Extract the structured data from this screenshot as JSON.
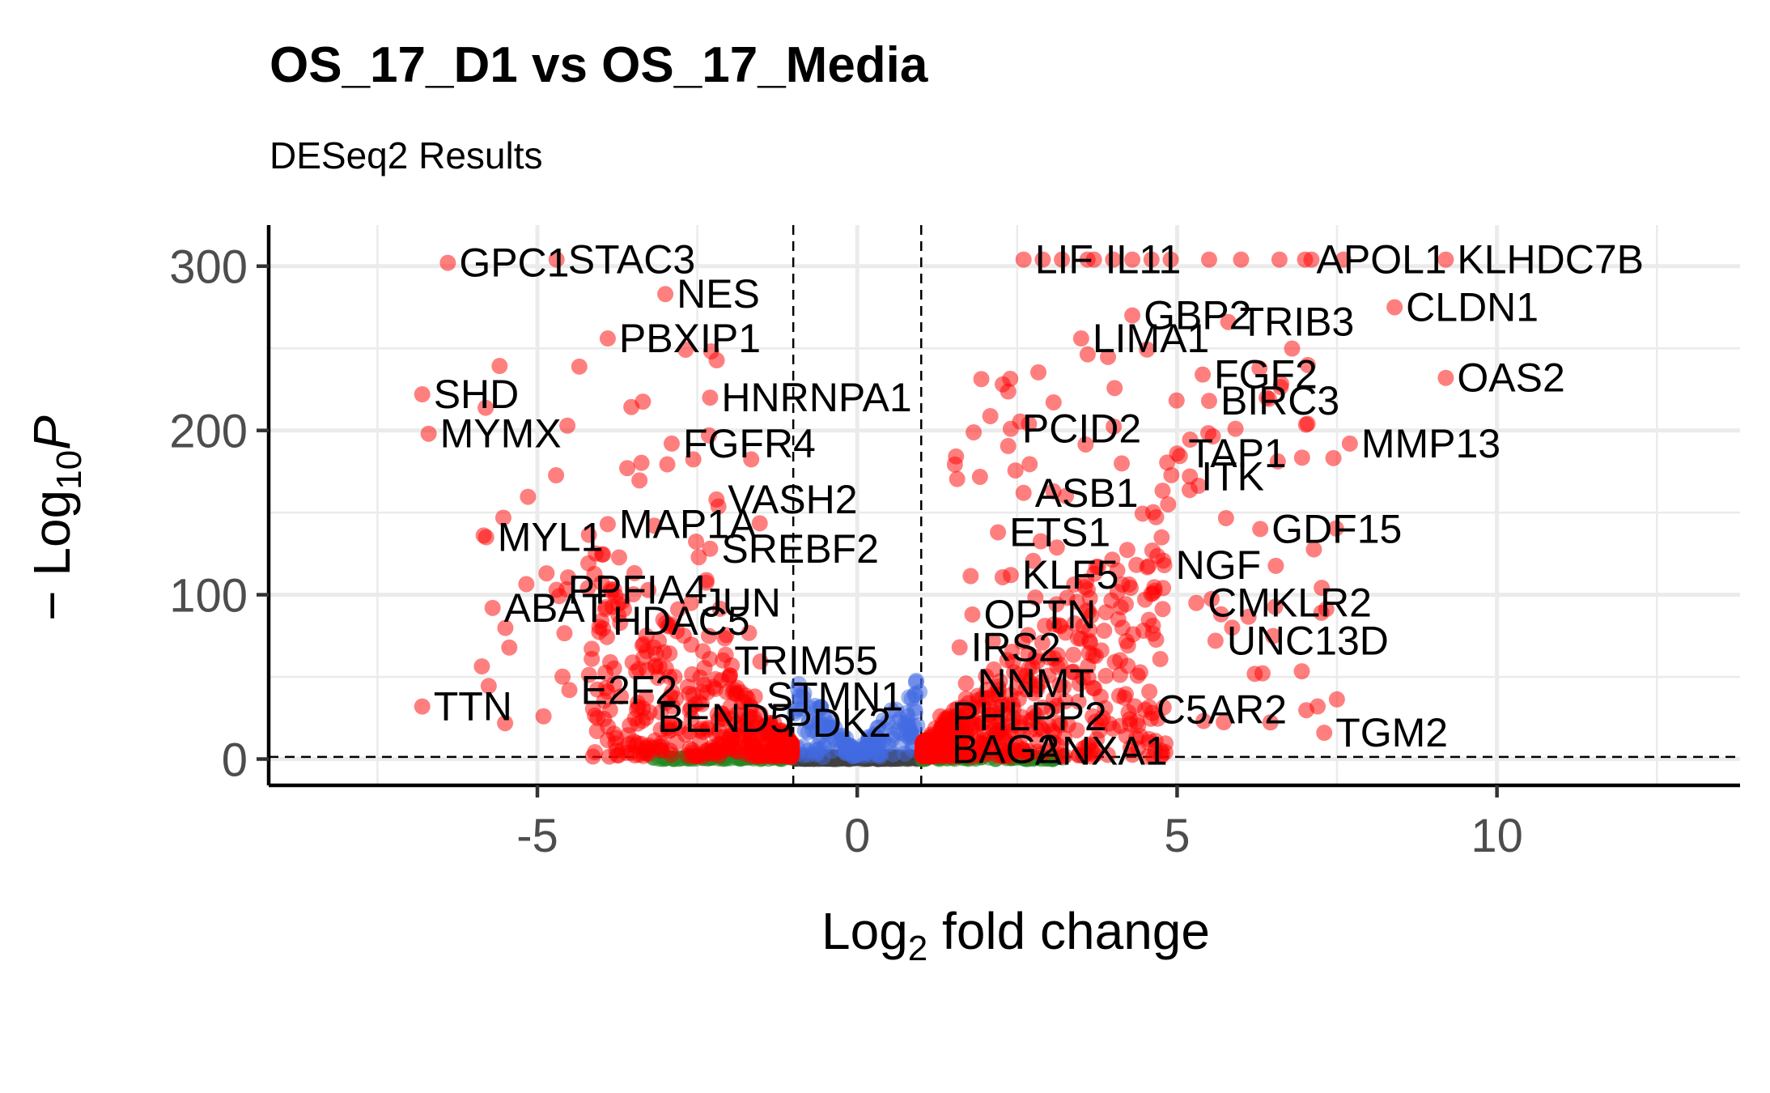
{
  "title": "OS_17_D1 vs OS_17_Media",
  "subtitle": "DESeq2 Results",
  "chart_data": {
    "type": "scatter",
    "title": "OS_17_D1 vs OS_17_Media",
    "subtitle": "DESeq2 Results",
    "xlabel": {
      "base": "Log",
      "sub": "2",
      "rest": " fold change"
    },
    "ylabel": {
      "prefix": "− Log",
      "sub": "10",
      "var": "P"
    },
    "xlim": [
      -9.2,
      13.8
    ],
    "ylim": [
      -16,
      325
    ],
    "x_ticks": [
      -5,
      0,
      5,
      10
    ],
    "x_tick_labels": [
      "-5",
      "0",
      "5",
      "10"
    ],
    "y_ticks": [
      0,
      100,
      200,
      300
    ],
    "y_tick_labels": [
      "0",
      "100",
      "200",
      "300"
    ],
    "grid": true,
    "fc_cutoff": 1,
    "p_cutoff_y": 1.3,
    "colors": {
      "sig": "#ff0000",
      "fc_only": "#228b22",
      "p_only": "#4169e1",
      "ns": "#404040",
      "grid": "#ebebeb",
      "axis": "#000000"
    },
    "labeled_genes": [
      {
        "label": "GPC1",
        "x": -6.4,
        "y": 302
      },
      {
        "label": "STAC3",
        "x": -4.7,
        "y": 304
      },
      {
        "label": "NES",
        "x": -3.0,
        "y": 283
      },
      {
        "label": "PBXIP1",
        "x": -3.9,
        "y": 256
      },
      {
        "label": "SHD",
        "x": -6.8,
        "y": 222
      },
      {
        "label": "HNRNPA1",
        "x": -2.3,
        "y": 220
      },
      {
        "label": "MYMX",
        "x": -6.7,
        "y": 198
      },
      {
        "label": "FGFR4",
        "x": -2.9,
        "y": 192
      },
      {
        "label": "VASH2",
        "x": -2.2,
        "y": 158
      },
      {
        "label": "MAP1A",
        "x": -3.9,
        "y": 143
      },
      {
        "label": "MYL1",
        "x": -5.8,
        "y": 135
      },
      {
        "label": "SREBF2",
        "x": -2.3,
        "y": 128
      },
      {
        "label": "PPFIA4",
        "x": -4.7,
        "y": 103
      },
      {
        "label": "JUN",
        "x": -2.6,
        "y": 95
      },
      {
        "label": "ABAT",
        "x": -5.7,
        "y": 92
      },
      {
        "label": "HDAC5",
        "x": -4.0,
        "y": 84
      },
      {
        "label": "TRIM55",
        "x": -2.1,
        "y": 60
      },
      {
        "label": "E2F2",
        "x": -4.5,
        "y": 42
      },
      {
        "label": "STMN1",
        "x": -1.6,
        "y": 38
      },
      {
        "label": "TTN",
        "x": -6.8,
        "y": 32
      },
      {
        "label": "BEND5",
        "x": -3.3,
        "y": 25
      },
      {
        "label": "PDK2",
        "x": -1.3,
        "y": 22
      },
      {
        "label": "LIF",
        "x": 2.6,
        "y": 304
      },
      {
        "label": "IL11",
        "x": 3.7,
        "y": 304
      },
      {
        "label": "APOL1",
        "x": 7.0,
        "y": 304
      },
      {
        "label": "KLHDC7B",
        "x": 9.2,
        "y": 304
      },
      {
        "label": "GBP2",
        "x": 4.3,
        "y": 270
      },
      {
        "label": "TRIB3",
        "x": 5.8,
        "y": 266
      },
      {
        "label": "CLDN1",
        "x": 8.4,
        "y": 275
      },
      {
        "label": "LIMA1",
        "x": 3.5,
        "y": 256
      },
      {
        "label": "FGF2",
        "x": 5.4,
        "y": 234
      },
      {
        "label": "OAS2",
        "x": 9.2,
        "y": 232
      },
      {
        "label": "BIRC3",
        "x": 5.5,
        "y": 218
      },
      {
        "label": "PCID2",
        "x": 2.4,
        "y": 201
      },
      {
        "label": "TAP1",
        "x": 5.0,
        "y": 186
      },
      {
        "label": "MMP13",
        "x": 7.7,
        "y": 192
      },
      {
        "label": "ITK",
        "x": 5.2,
        "y": 172
      },
      {
        "label": "ASB1",
        "x": 2.6,
        "y": 162
      },
      {
        "label": "ETS1",
        "x": 2.2,
        "y": 138
      },
      {
        "label": "GDF15",
        "x": 6.3,
        "y": 140
      },
      {
        "label": "NGF",
        "x": 4.8,
        "y": 118
      },
      {
        "label": "KLF5",
        "x": 2.4,
        "y": 112
      },
      {
        "label": "CMKLR2",
        "x": 5.3,
        "y": 95
      },
      {
        "label": "OPTN",
        "x": 1.8,
        "y": 88
      },
      {
        "label": "UNC13D",
        "x": 5.6,
        "y": 72
      },
      {
        "label": "IRS2",
        "x": 1.6,
        "y": 68
      },
      {
        "label": "NNMT",
        "x": 1.7,
        "y": 46
      },
      {
        "label": "C5AR2",
        "x": 4.5,
        "y": 30
      },
      {
        "label": "PHLPP2",
        "x": 1.3,
        "y": 26
      },
      {
        "label": "TGM2",
        "x": 7.3,
        "y": 16
      },
      {
        "label": "BAG2",
        "x": 1.3,
        "y": 6
      },
      {
        "label": "ANXA1",
        "x": 2.6,
        "y": 5
      }
    ]
  }
}
